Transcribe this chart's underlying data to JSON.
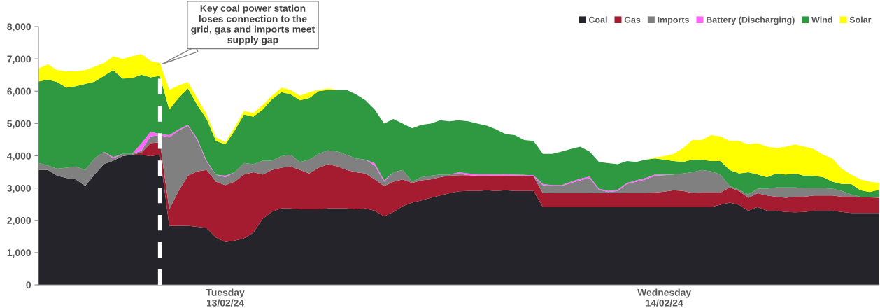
{
  "chart_data": {
    "type": "area",
    "stacked": true,
    "categories": [
      null,
      null,
      null,
      null,
      null,
      null,
      null,
      null,
      null,
      null,
      null,
      null,
      null,
      null,
      null,
      null,
      null,
      null,
      null,
      null,
      "Tuesday\n13/02/24",
      null,
      null,
      null,
      null,
      null,
      null,
      null,
      null,
      null,
      null,
      null,
      null,
      null,
      null,
      null,
      null,
      null,
      null,
      null,
      null,
      null,
      null,
      null,
      null,
      null,
      null,
      null,
      null,
      null,
      null,
      null,
      null,
      null,
      null,
      null,
      null,
      null,
      null,
      null,
      null,
      null,
      null,
      null,
      null,
      null,
      null,
      "Wednesday\n14/02/24",
      null,
      null,
      null,
      null,
      null,
      null,
      null,
      null,
      null,
      null,
      null,
      null,
      null,
      null,
      null,
      null,
      null,
      null,
      null,
      null,
      null,
      null,
      null
    ],
    "ylim": [
      0,
      8000
    ],
    "yticks": [
      0,
      {
        "value": 1000,
        "label": "1,000"
      },
      {
        "value": 2000,
        "label": "2,000"
      },
      {
        "value": 3000,
        "label": "3,000"
      },
      {
        "value": 4000,
        "label": "4,000"
      },
      {
        "value": 5000,
        "label": "5,000"
      },
      {
        "value": 6000,
        "label": "6,000"
      },
      {
        "value": 7000,
        "label": "7,000"
      },
      {
        "value": 8000,
        "label": "8,000"
      }
    ],
    "grid": false,
    "legend": "top right",
    "annotations": [
      "Key coal power station loses connection to the grid, gas and imports meet supply gap"
    ],
    "series": [
      {
        "name": "Coal",
        "color": "#25242b",
        "values": [
          3560,
          3560,
          3380,
          3310,
          3270,
          3060,
          3420,
          3740,
          3850,
          3990,
          4030,
          4030,
          3990,
          4030,
          1830,
          1830,
          1830,
          1800,
          1760,
          1470,
          1330,
          1370,
          1440,
          1620,
          2050,
          2270,
          2370,
          2370,
          2340,
          2340,
          2340,
          2370,
          2370,
          2370,
          2340,
          2370,
          2300,
          2120,
          2260,
          2440,
          2550,
          2620,
          2700,
          2770,
          2840,
          2900,
          2910,
          2910,
          2930,
          2910,
          2930,
          2910,
          2910,
          2910,
          2410,
          2410,
          2410,
          2410,
          2410,
          2410,
          2410,
          2410,
          2410,
          2410,
          2410,
          2410,
          2410,
          2410,
          2410,
          2410,
          2410,
          2410,
          2410,
          2480,
          2550,
          2480,
          2300,
          2410,
          2300,
          2300,
          2260,
          2250,
          2260,
          2300,
          2300,
          2300,
          2260,
          2230,
          2230,
          2230,
          2230
        ]
      },
      {
        "name": "Gas",
        "color": "#a51c30",
        "values": [
          0,
          0,
          0,
          0,
          0,
          0,
          0,
          0,
          0,
          0,
          0,
          70,
          400,
          390,
          510,
          1080,
          1550,
          1720,
          1800,
          1730,
          1760,
          1830,
          1980,
          1870,
          1370,
          1290,
          1260,
          1300,
          1220,
          1110,
          1290,
          1370,
          1300,
          1190,
          1150,
          1080,
          970,
          940,
          940,
          830,
          610,
          620,
          570,
          570,
          540,
          500,
          490,
          470,
          450,
          470,
          450,
          470,
          470,
          450,
          430,
          440,
          440,
          440,
          440,
          440,
          430,
          430,
          430,
          440,
          440,
          440,
          450,
          480,
          520,
          500,
          440,
          450,
          450,
          380,
          470,
          430,
          400,
          430,
          470,
          430,
          440,
          480,
          470,
          470,
          470,
          470,
          470,
          500,
          480,
          480,
          470
        ]
      },
      {
        "name": "Imports",
        "color": "#808080",
        "values": [
          220,
          140,
          220,
          320,
          400,
          500,
          500,
          390,
          70,
          70,
          30,
          50,
          210,
          220,
          2230,
          1870,
          1550,
          970,
          250,
          220,
          250,
          290,
          360,
          250,
          430,
          290,
          360,
          360,
          250,
          430,
          430,
          430,
          460,
          470,
          430,
          430,
          430,
          140,
          290,
          290,
          40,
          100,
          110,
          80,
          40,
          50,
          0,
          0,
          0,
          0,
          0,
          0,
          0,
          0,
          250,
          210,
          210,
          310,
          390,
          460,
          110,
          40,
          70,
          280,
          350,
          420,
          520,
          510,
          490,
          540,
          640,
          700,
          660,
          560,
          40,
          40,
          100,
          140,
          210,
          290,
          320,
          290,
          270,
          230,
          230,
          210,
          180,
          70,
          20,
          10,
          30
        ]
      },
      {
        "name": "Battery (Discharging)",
        "color": "#ff66ff",
        "values": [
          0,
          0,
          0,
          0,
          0,
          0,
          0,
          0,
          40,
          0,
          0,
          230,
          150,
          30,
          70,
          40,
          30,
          40,
          40,
          0,
          40,
          0,
          0,
          0,
          0,
          0,
          0,
          0,
          0,
          0,
          0,
          0,
          0,
          0,
          0,
          0,
          70,
          40,
          0,
          0,
          0,
          0,
          0,
          0,
          0,
          40,
          50,
          50,
          50,
          40,
          50,
          40,
          30,
          40,
          40,
          30,
          30,
          40,
          50,
          50,
          30,
          30,
          40,
          30,
          40,
          40,
          40,
          20,
          0,
          0,
          0,
          0,
          0,
          0,
          0,
          0,
          0,
          0,
          0,
          0,
          0,
          0,
          0,
          0,
          0,
          0,
          0,
          0,
          0,
          0,
          0
        ]
      },
      {
        "name": "Wind",
        "color": "#2e9940",
        "values": [
          2520,
          2660,
          2680,
          2480,
          2480,
          2660,
          2370,
          2340,
          2690,
          2330,
          2340,
          2130,
          1680,
          1800,
          790,
          970,
          1120,
          1040,
          1290,
          1040,
          970,
          1290,
          1500,
          1470,
          1580,
          1900,
          1980,
          1870,
          1910,
          1910,
          1940,
          1870,
          1910,
          2010,
          1980,
          1840,
          1660,
          1760,
          1650,
          1440,
          1650,
          1620,
          1620,
          1680,
          1650,
          1610,
          1620,
          1570,
          1500,
          1400,
          1240,
          1220,
          1080,
          1060,
          930,
          970,
          1040,
          1010,
          990,
          770,
          830,
          860,
          790,
          680,
          570,
          570,
          500,
          460,
          420,
          360,
          390,
          320,
          320,
          420,
          500,
          500,
          690,
          440,
          360,
          430,
          400,
          430,
          380,
          380,
          340,
          220,
          220,
          330,
          200,
          160,
          220
        ]
      },
      {
        "name": "Solar",
        "color": "#ffff00",
        "values": [
          400,
          470,
          370,
          500,
          460,
          430,
          470,
          400,
          430,
          610,
          680,
          640,
          510,
          400,
          610,
          390,
          200,
          220,
          140,
          110,
          70,
          110,
          110,
          110,
          140,
          110,
          140,
          140,
          140,
          180,
          40,
          40,
          0,
          0,
          0,
          0,
          0,
          0,
          0,
          0,
          0,
          0,
          0,
          0,
          0,
          0,
          0,
          0,
          0,
          0,
          0,
          0,
          0,
          0,
          0,
          0,
          0,
          0,
          0,
          0,
          0,
          0,
          0,
          0,
          0,
          0,
          30,
          110,
          220,
          430,
          610,
          610,
          800,
          760,
          900,
          1010,
          860,
          970,
          940,
          790,
          860,
          900,
          900,
          830,
          690,
          720,
          470,
          290,
          340,
          320,
          210
        ]
      }
    ]
  }
}
